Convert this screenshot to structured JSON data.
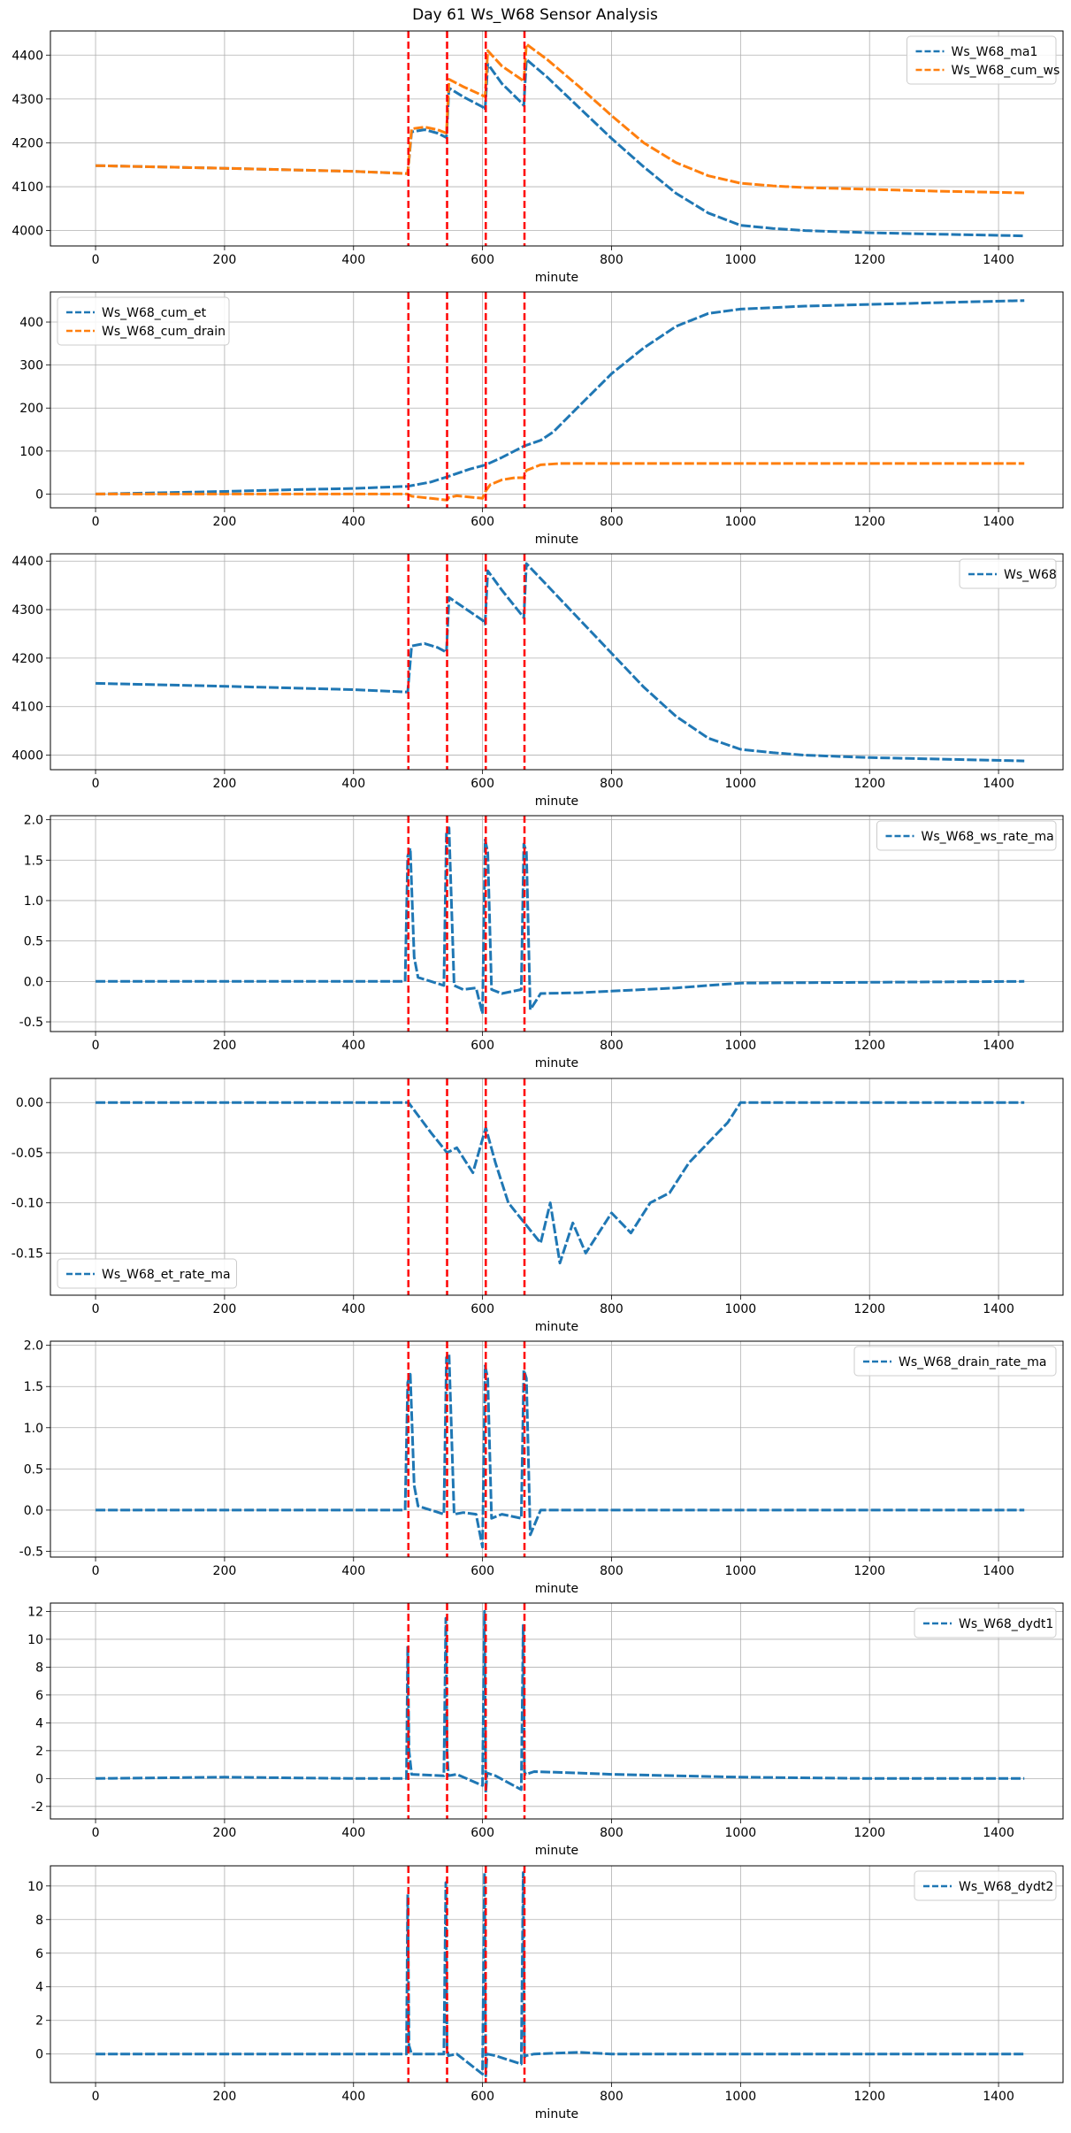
{
  "figure_title": "Day 61 Ws_W68 Sensor Analysis",
  "colors": {
    "blue": "#1f77b4",
    "orange": "#ff7f0e",
    "red": "#ff0000",
    "grid": "#b0b0b0"
  },
  "events_minutes": [
    485,
    545,
    605,
    665
  ],
  "chart_data": [
    {
      "type": "line",
      "xlabel": "minute",
      "xlim": [
        -70,
        1500
      ],
      "ylim": [
        3965,
        4455
      ],
      "xticks": [
        0,
        200,
        400,
        600,
        800,
        1000,
        1200,
        1400
      ],
      "yticks": [
        4000,
        4100,
        4200,
        4300,
        4400
      ],
      "ytick_labels": [
        "4000",
        "4100",
        "4200",
        "4300",
        "4400"
      ],
      "legend_loc": "upper right",
      "series": [
        {
          "name": "Ws_W68_ma1",
          "color": "#1f77b4",
          "x": [
            0,
            200,
            400,
            484,
            490,
            510,
            530,
            544,
            548,
            570,
            600,
            604,
            608,
            630,
            660,
            664,
            668,
            700,
            750,
            800,
            850,
            900,
            950,
            1000,
            1050,
            1100,
            1200,
            1300,
            1440
          ],
          "y": [
            4148,
            4142,
            4135,
            4130,
            4225,
            4230,
            4222,
            4212,
            4325,
            4305,
            4282,
            4275,
            4380,
            4335,
            4292,
            4285,
            4390,
            4350,
            4280,
            4210,
            4145,
            4085,
            4040,
            4012,
            4005,
            4000,
            3995,
            3992,
            3988
          ]
        },
        {
          "name": "Ws_W68_cum_ws",
          "color": "#ff7f0e",
          "x": [
            0,
            200,
            400,
            484,
            490,
            510,
            530,
            544,
            548,
            570,
            600,
            604,
            608,
            630,
            660,
            664,
            668,
            700,
            750,
            800,
            850,
            900,
            950,
            1000,
            1050,
            1100,
            1200,
            1300,
            1440
          ],
          "y": [
            4148,
            4142,
            4135,
            4130,
            4232,
            4236,
            4230,
            4222,
            4345,
            4328,
            4308,
            4305,
            4410,
            4375,
            4345,
            4340,
            4425,
            4390,
            4328,
            4262,
            4200,
            4155,
            4125,
            4108,
            4102,
            4098,
            4094,
            4090,
            4086
          ]
        }
      ]
    },
    {
      "type": "line",
      "xlabel": "minute",
      "xlim": [
        -70,
        1500
      ],
      "ylim": [
        -32,
        470
      ],
      "xticks": [
        0,
        200,
        400,
        600,
        800,
        1000,
        1200,
        1400
      ],
      "yticks": [
        0,
        100,
        200,
        300,
        400
      ],
      "ytick_labels": [
        "0",
        "100",
        "200",
        "300",
        "400"
      ],
      "legend_loc": "upper left",
      "series": [
        {
          "name": "Ws_W68_cum_et",
          "color": "#1f77b4",
          "x": [
            0,
            100,
            200,
            300,
            400,
            484,
            520,
            545,
            580,
            605,
            630,
            665,
            690,
            710,
            730,
            760,
            800,
            850,
            900,
            950,
            1000,
            1100,
            1200,
            1300,
            1440
          ],
          "y": [
            0,
            3,
            6,
            10,
            13,
            18,
            28,
            40,
            58,
            68,
            85,
            112,
            125,
            145,
            175,
            220,
            280,
            340,
            390,
            420,
            430,
            437,
            441,
            445,
            450
          ]
        },
        {
          "name": "Ws_W68_cum_drain",
          "color": "#ff7f0e",
          "x": [
            0,
            200,
            400,
            484,
            490,
            520,
            545,
            548,
            560,
            600,
            604,
            612,
            630,
            650,
            664,
            668,
            690,
            720,
            800,
            1000,
            1200,
            1440
          ],
          "y": [
            0,
            0,
            0,
            0,
            -5,
            -10,
            -14,
            -8,
            -4,
            -10,
            5,
            22,
            33,
            38,
            38,
            55,
            68,
            71,
            71,
            71,
            71,
            71
          ]
        }
      ]
    },
    {
      "type": "line",
      "xlabel": "minute",
      "xlim": [
        -70,
        1500
      ],
      "ylim": [
        3970,
        4415
      ],
      "xticks": [
        0,
        200,
        400,
        600,
        800,
        1000,
        1200,
        1400
      ],
      "yticks": [
        4000,
        4100,
        4200,
        4300,
        4400
      ],
      "ytick_labels": [
        "4000",
        "4100",
        "4200",
        "4300",
        "4400"
      ],
      "legend_loc": "upper right",
      "series": [
        {
          "name": "Ws_W68",
          "color": "#1f77b4",
          "x": [
            0,
            200,
            400,
            484,
            490,
            510,
            530,
            544,
            548,
            570,
            600,
            604,
            608,
            630,
            660,
            664,
            668,
            700,
            750,
            800,
            850,
            900,
            950,
            1000,
            1050,
            1100,
            1200,
            1300,
            1440
          ],
          "y": [
            4148,
            4142,
            4135,
            4130,
            4225,
            4230,
            4222,
            4212,
            4325,
            4305,
            4278,
            4270,
            4380,
            4340,
            4290,
            4283,
            4395,
            4350,
            4280,
            4210,
            4140,
            4080,
            4035,
            4012,
            4005,
            4000,
            3995,
            3992,
            3988
          ]
        }
      ]
    },
    {
      "type": "line",
      "xlabel": "minute",
      "xlim": [
        -70,
        1500
      ],
      "ylim": [
        -0.62,
        2.05
      ],
      "xticks": [
        0,
        200,
        400,
        600,
        800,
        1000,
        1200,
        1400
      ],
      "yticks": [
        -0.5,
        0.0,
        0.5,
        1.0,
        1.5,
        2.0
      ],
      "ytick_labels": [
        "-0.5",
        "0.0",
        "0.5",
        "1.0",
        "1.5",
        "2.0"
      ],
      "legend_loc": "upper right",
      "series": [
        {
          "name": "Ws_W68_ws_rate_ma",
          "color": "#1f77b4",
          "x": [
            0,
            200,
            400,
            480,
            484,
            488,
            494,
            500,
            520,
            540,
            544,
            548,
            556,
            570,
            590,
            600,
            604,
            608,
            614,
            630,
            660,
            664,
            668,
            674,
            690,
            750,
            800,
            900,
            950,
            1000,
            1200,
            1440
          ],
          "y": [
            0,
            0,
            0,
            0,
            1.55,
            1.65,
            0.3,
            0.05,
            0,
            -0.05,
            1.85,
            1.9,
            -0.05,
            -0.1,
            -0.08,
            -0.4,
            1.75,
            1.6,
            -0.1,
            -0.15,
            -0.1,
            1.7,
            1.6,
            -0.35,
            -0.15,
            -0.14,
            -0.12,
            -0.08,
            -0.05,
            -0.02,
            -0.01,
            0
          ]
        }
      ]
    },
    {
      "type": "line",
      "xlabel": "minute",
      "xlim": [
        -70,
        1500
      ],
      "ylim": [
        -0.192,
        0.024
      ],
      "xticks": [
        0,
        200,
        400,
        600,
        800,
        1000,
        1200,
        1400
      ],
      "yticks": [
        -0.15,
        -0.1,
        -0.05,
        0.0
      ],
      "ytick_labels": [
        "-0.15",
        "-0.10",
        "-0.05",
        "0.00"
      ],
      "legend_loc": "lower left",
      "series": [
        {
          "name": "Ws_W68_et_rate_ma",
          "color": "#1f77b4",
          "x": [
            0,
            100,
            200,
            300,
            400,
            470,
            485,
            520,
            545,
            560,
            585,
            605,
            620,
            640,
            665,
            690,
            705,
            720,
            740,
            760,
            780,
            800,
            830,
            860,
            890,
            920,
            950,
            980,
            1000,
            1100,
            1200,
            1300,
            1440
          ],
          "y": [
            0,
            0,
            0,
            0,
            0,
            0,
            0,
            -0.03,
            -0.05,
            -0.045,
            -0.07,
            -0.025,
            -0.06,
            -0.1,
            -0.12,
            -0.14,
            -0.1,
            -0.16,
            -0.12,
            -0.15,
            -0.13,
            -0.11,
            -0.13,
            -0.1,
            -0.09,
            -0.06,
            -0.04,
            -0.02,
            0,
            0,
            0,
            0,
            0
          ]
        }
      ]
    },
    {
      "type": "line",
      "xlabel": "minute",
      "xlim": [
        -70,
        1500
      ],
      "ylim": [
        -0.57,
        2.05
      ],
      "xticks": [
        0,
        200,
        400,
        600,
        800,
        1000,
        1200,
        1400
      ],
      "yticks": [
        -0.5,
        0.0,
        0.5,
        1.0,
        1.5,
        2.0
      ],
      "ytick_labels": [
        "-0.5",
        "0.0",
        "0.5",
        "1.0",
        "1.5",
        "2.0"
      ],
      "legend_loc": "upper right",
      "series": [
        {
          "name": "Ws_W68_drain_rate_ma",
          "color": "#1f77b4",
          "x": [
            0,
            200,
            400,
            480,
            484,
            488,
            494,
            500,
            520,
            540,
            544,
            548,
            556,
            570,
            590,
            600,
            604,
            608,
            614,
            630,
            660,
            664,
            668,
            674,
            690,
            800,
            1000,
            1200,
            1440
          ],
          "y": [
            0,
            0,
            0,
            0,
            1.55,
            1.65,
            0.3,
            0.05,
            0,
            -0.05,
            1.85,
            1.9,
            -0.05,
            -0.03,
            -0.05,
            -0.45,
            1.75,
            1.6,
            -0.1,
            -0.05,
            -0.1,
            1.7,
            1.6,
            -0.3,
            0,
            0,
            0,
            0,
            0
          ]
        }
      ]
    },
    {
      "type": "line",
      "xlabel": "minute",
      "xlim": [
        -70,
        1500
      ],
      "ylim": [
        -2.9,
        12.6
      ],
      "xticks": [
        0,
        200,
        400,
        600,
        800,
        1000,
        1200,
        1400
      ],
      "yticks": [
        -2,
        0,
        2,
        4,
        6,
        8,
        10,
        12
      ],
      "ytick_labels": [
        "-2",
        "0",
        "2",
        "4",
        "6",
        "8",
        "10",
        "12"
      ],
      "legend_loc": "upper right",
      "series": [
        {
          "name": "Ws_W68_dydt1",
          "color": "#1f77b4",
          "x": [
            0,
            200,
            400,
            482,
            484,
            486,
            490,
            540,
            543,
            545,
            547,
            560,
            600,
            603,
            605,
            607,
            620,
            660,
            663,
            665,
            667,
            680,
            750,
            800,
            900,
            1000,
            1200,
            1440
          ],
          "y": [
            0,
            0.1,
            0,
            0,
            9.5,
            2,
            0.3,
            0.2,
            11.5,
            2,
            0.2,
            0.3,
            -0.5,
            12,
            -1,
            0.4,
            0.2,
            -0.8,
            11,
            0.5,
            0.3,
            0.5,
            0.4,
            0.3,
            0.2,
            0.1,
            0,
            0
          ]
        }
      ]
    },
    {
      "type": "line",
      "xlabel": "minute",
      "xlim": [
        -70,
        1500
      ],
      "ylim": [
        -1.7,
        11.2
      ],
      "xticks": [
        0,
        200,
        400,
        600,
        800,
        1000,
        1200,
        1400
      ],
      "yticks": [
        0,
        2,
        4,
        6,
        8,
        10
      ],
      "ytick_labels": [
        "0",
        "2",
        "4",
        "6",
        "8",
        "10"
      ],
      "legend_loc": "upper right",
      "series": [
        {
          "name": "Ws_W68_dydt2",
          "color": "#1f77b4",
          "x": [
            0,
            200,
            400,
            482,
            484,
            486,
            490,
            540,
            543,
            545,
            547,
            560,
            600,
            603,
            605,
            607,
            620,
            660,
            663,
            665,
            667,
            680,
            750,
            800,
            1000,
            1200,
            1440
          ],
          "y": [
            0,
            0,
            0,
            0,
            9.5,
            0.5,
            0,
            0,
            10.2,
            0.3,
            -0.1,
            0,
            -1.2,
            10.8,
            -1.3,
            0,
            -0.1,
            -0.6,
            10.8,
            -0.2,
            -0.1,
            0,
            0.1,
            0,
            0,
            0,
            0
          ]
        }
      ]
    }
  ]
}
